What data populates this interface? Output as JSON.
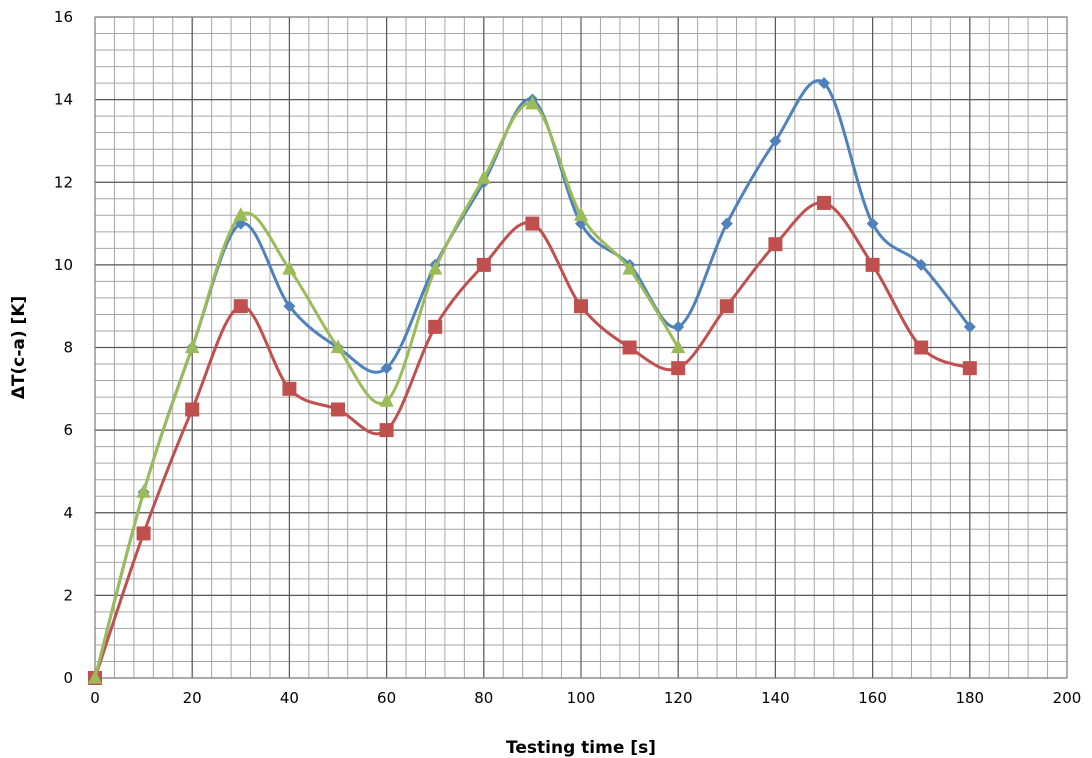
{
  "chart_data": {
    "type": "line",
    "title": "",
    "xlabel": "Testing time [s]",
    "ylabel": "ΔT(c-a) [K]",
    "xlim": [
      0,
      200
    ],
    "ylim": [
      0,
      16
    ],
    "x_major_ticks": [
      0,
      20,
      40,
      60,
      80,
      100,
      120,
      140,
      160,
      180,
      200
    ],
    "y_major_ticks": [
      0,
      2,
      4,
      6,
      8,
      10,
      12,
      14,
      16
    ],
    "x_tick_labels": [
      "0",
      "20",
      "40",
      "60",
      "80",
      "100",
      "120",
      "140",
      "160",
      "180",
      "200"
    ],
    "y_tick_labels": [
      "0",
      "2",
      "4",
      "6",
      "8",
      "10",
      "12",
      "14",
      "16"
    ],
    "x_minor_step": 4,
    "y_minor_step": 0.4,
    "grid": true,
    "smooth": true,
    "legend": "none",
    "series": [
      {
        "color": "#4F81BD",
        "marker": "diamond",
        "x": [
          0,
          10,
          20,
          30,
          40,
          50,
          60,
          70,
          80,
          90,
          100,
          110,
          120,
          130,
          140,
          150,
          160,
          170,
          180
        ],
        "values": [
          0,
          4.5,
          8,
          11,
          9,
          8,
          7.5,
          10,
          12,
          14,
          11,
          10,
          8.5,
          11,
          13,
          14.4,
          11,
          10,
          8.5
        ]
      },
      {
        "color": "#C0504D",
        "marker": "square",
        "x": [
          0,
          10,
          20,
          30,
          40,
          50,
          60,
          70,
          80,
          90,
          100,
          110,
          120,
          130,
          140,
          150,
          160,
          170,
          180
        ],
        "values": [
          0,
          3.5,
          6.5,
          9,
          7,
          6.5,
          6,
          8.5,
          10,
          11,
          9,
          8,
          7.5,
          9,
          10.5,
          11.5,
          10,
          8,
          7.5
        ]
      },
      {
        "color": "#9BBB59",
        "marker": "triangle",
        "x": [
          0,
          10,
          20,
          30,
          40,
          50,
          60,
          70,
          80,
          90,
          100,
          110,
          120
        ],
        "values": [
          0,
          4.5,
          8,
          11.2,
          9.9,
          8,
          6.7,
          9.9,
          12.1,
          13.9,
          11.2,
          9.9,
          8
        ]
      }
    ]
  }
}
